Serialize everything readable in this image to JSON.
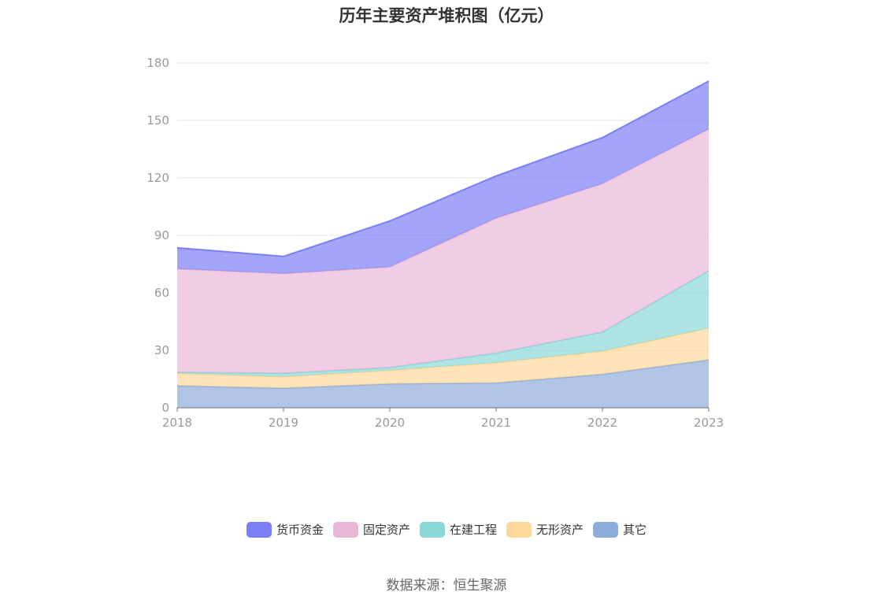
{
  "chart_data": {
    "type": "area",
    "stacked": true,
    "title": "历年主要资产堆积图（亿元）",
    "categories": [
      "2018",
      "2019",
      "2020",
      "2021",
      "2022",
      "2023"
    ],
    "y_ticks": [
      "0",
      "30",
      "60",
      "90",
      "120",
      "150",
      "180"
    ],
    "ylim": [
      0,
      180
    ],
    "grid": "horizontal",
    "legend_position": "bottom",
    "series": [
      {
        "name": "其它",
        "color": "#8eacdb",
        "values": [
          11.5,
          10.2,
          12.5,
          13.0,
          17.5,
          25.0
        ]
      },
      {
        "name": "无形资产",
        "color": "#fdd89a",
        "values": [
          6.5,
          6.0,
          7.0,
          10.5,
          12.0,
          16.5
        ]
      },
      {
        "name": "在建工程",
        "color": "#8ad8d8",
        "values": [
          0.5,
          1.8,
          1.5,
          5.0,
          10.0,
          30.0
        ]
      },
      {
        "name": "固定资产",
        "color": "#e9b8d9",
        "values": [
          54.0,
          52.0,
          52.5,
          70.5,
          77.5,
          74.0
        ]
      },
      {
        "name": "货币资金",
        "color": "#7b7ff5",
        "values": [
          11.0,
          9.0,
          24.0,
          22.0,
          24.0,
          25.0
        ]
      }
    ]
  },
  "legend_items": [
    {
      "label": "货币资金",
      "color": "#7b7ff5"
    },
    {
      "label": "固定资产",
      "color": "#e9b8d9"
    },
    {
      "label": "在建工程",
      "color": "#8ad8d8"
    },
    {
      "label": "无形资产",
      "color": "#fdd89a"
    },
    {
      "label": "其它",
      "color": "#8eacdb"
    }
  ],
  "source": "数据来源：恒生聚源"
}
